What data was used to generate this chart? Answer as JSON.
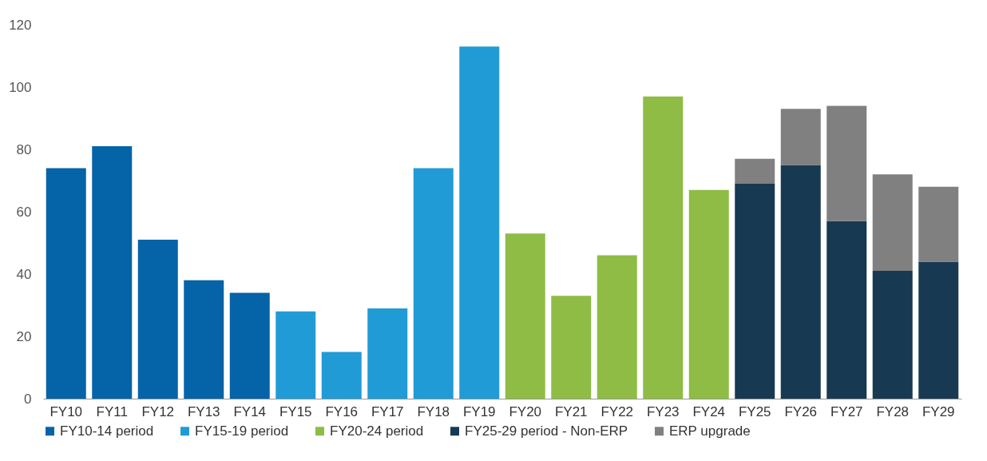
{
  "chart_data": {
    "type": "bar",
    "stacked": true,
    "categories": [
      "FY10",
      "FY11",
      "FY12",
      "FY13",
      "FY14",
      "FY15",
      "FY16",
      "FY17",
      "FY18",
      "FY19",
      "FY20",
      "FY21",
      "FY22",
      "FY23",
      "FY24",
      "FY25",
      "FY26",
      "FY27",
      "FY28",
      "FY29"
    ],
    "series": [
      {
        "name": "FY10-14 period",
        "color": "#0563a8",
        "values": [
          74,
          81,
          51,
          38,
          34,
          null,
          null,
          null,
          null,
          null,
          null,
          null,
          null,
          null,
          null,
          null,
          null,
          null,
          null,
          null
        ]
      },
      {
        "name": "FY15-19 period",
        "color": "#219bd6",
        "values": [
          null,
          null,
          null,
          null,
          null,
          28,
          15,
          29,
          74,
          113,
          null,
          null,
          null,
          null,
          null,
          null,
          null,
          null,
          null,
          null
        ]
      },
      {
        "name": "FY20-24 period",
        "color": "#8fbc45",
        "values": [
          null,
          null,
          null,
          null,
          null,
          null,
          null,
          null,
          null,
          null,
          53,
          33,
          46,
          97,
          67,
          null,
          null,
          null,
          null,
          null
        ]
      },
      {
        "name": "FY25-29 period - Non-ERP",
        "color": "#173a52",
        "values": [
          null,
          null,
          null,
          null,
          null,
          null,
          null,
          null,
          null,
          null,
          null,
          null,
          null,
          null,
          null,
          69,
          75,
          57,
          41,
          44
        ]
      },
      {
        "name": "ERP upgrade",
        "color": "#808080",
        "values": [
          null,
          null,
          null,
          null,
          null,
          null,
          null,
          null,
          null,
          null,
          null,
          null,
          null,
          null,
          null,
          8,
          18,
          37,
          31,
          24
        ]
      }
    ],
    "ylim": [
      0,
      120
    ],
    "yticks": [
      0,
      20,
      40,
      60,
      80,
      100,
      120
    ],
    "grid": false,
    "legend": "bottom"
  }
}
